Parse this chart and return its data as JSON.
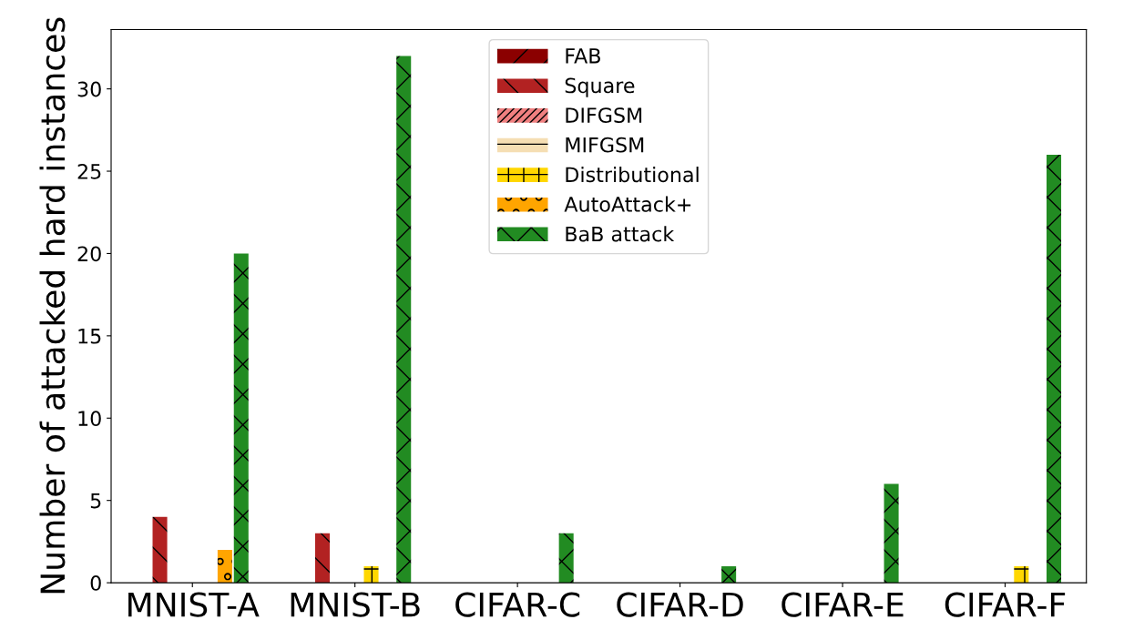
{
  "chart_data": {
    "type": "bar",
    "ylabel": "Number of attacked hard instances",
    "categories": [
      "MNIST-A",
      "MNIST-B",
      "CIFAR-C",
      "CIFAR-D",
      "CIFAR-E",
      "CIFAR-F"
    ],
    "series": [
      {
        "name": "FAB",
        "color": "#8b0000",
        "values": [
          0,
          0,
          0,
          0,
          0,
          0
        ]
      },
      {
        "name": "Square",
        "color": "#b22222",
        "values": [
          4,
          3,
          0,
          0,
          0,
          0
        ]
      },
      {
        "name": "DIFGSM",
        "color": "#f08080",
        "values": [
          0,
          0,
          0,
          0,
          0,
          0
        ]
      },
      {
        "name": "MIFGSM",
        "color": "#f5deb3",
        "values": [
          0,
          0,
          0,
          0,
          0,
          0
        ]
      },
      {
        "name": "Distributional",
        "color": "#ffd700",
        "values": [
          0,
          1,
          0,
          0,
          0,
          1
        ]
      },
      {
        "name": "AutoAttack+",
        "color": "#ffa500",
        "values": [
          2,
          0,
          0,
          0,
          0,
          0
        ]
      },
      {
        "name": "BaB attack",
        "color": "#228b22",
        "values": [
          20,
          32,
          3,
          1,
          6,
          26
        ]
      }
    ],
    "ylim": [
      0,
      33.6
    ],
    "yticks": [
      0,
      5,
      10,
      15,
      20,
      25,
      30
    ],
    "grid": false,
    "legend": "top"
  }
}
